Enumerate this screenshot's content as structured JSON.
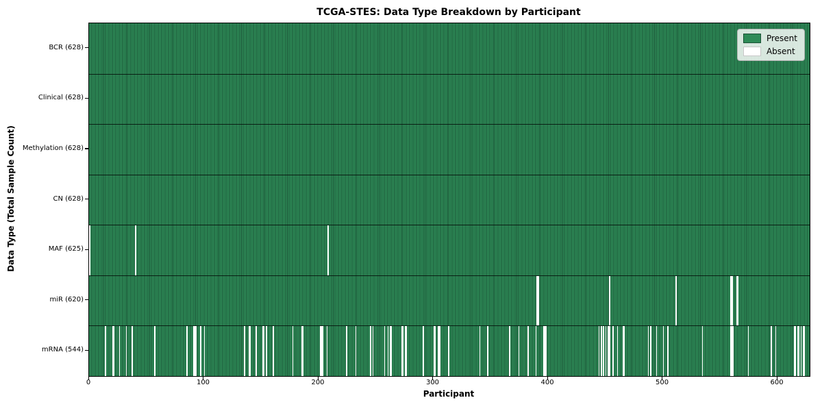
{
  "chart_data": {
    "type": "heatmap",
    "title": "TCGA-STES: Data Type Breakdown by Participant",
    "xlabel": "Participant",
    "ylabel": "Data Type (Total Sample Count)",
    "n_participants": 628,
    "xlim": [
      0,
      628
    ],
    "xticks": [
      0,
      100,
      200,
      300,
      400,
      500,
      600
    ],
    "grid": false,
    "colors": {
      "present": "#2e8b57",
      "present_edge": "#1b5236",
      "absent": "#ffffff",
      "figure_background": "#ffffff",
      "plot_border": "#000000"
    },
    "legend": {
      "position": "upper-right",
      "entries": [
        {
          "label": "Present",
          "color": "#2e8b57",
          "edge": "#1b5236"
        },
        {
          "label": "Absent",
          "color": "#ffffff",
          "edge": "#c8c8c8"
        }
      ]
    },
    "rows": [
      {
        "key": "bcr",
        "label": "BCR (628)",
        "data_type": "BCR",
        "present_count": 628,
        "absent_participants": []
      },
      {
        "key": "clinical",
        "label": "Clinical (628)",
        "data_type": "Clinical",
        "present_count": 628,
        "absent_participants": []
      },
      {
        "key": "methylation",
        "label": "Methylation (628)",
        "data_type": "Methylation",
        "present_count": 628,
        "absent_participants": []
      },
      {
        "key": "cn",
        "label": "CN (628)",
        "data_type": "CN",
        "present_count": 628,
        "absent_participants": []
      },
      {
        "key": "maf",
        "label": "MAF (625)",
        "data_type": "MAF",
        "present_count": 625,
        "absent_participants": [
          0,
          40,
          208
        ]
      },
      {
        "key": "mir",
        "label": "miR (620)",
        "data_type": "miR",
        "present_count": 620,
        "absent_participants": [
          390,
          391,
          453,
          511,
          559,
          560,
          564,
          565
        ]
      },
      {
        "key": "mrna",
        "label": "mRNA (544)",
        "data_type": "mRNA",
        "present_count": 544,
        "absent_participants": [
          14,
          20,
          21,
          26,
          32,
          37,
          57,
          85,
          91,
          92,
          93,
          97,
          100,
          135,
          139,
          140,
          145,
          151,
          152,
          154,
          160,
          177,
          185,
          186,
          201,
          202,
          203,
          207,
          224,
          232,
          245,
          247,
          257,
          260,
          262,
          263,
          272,
          273,
          275,
          276,
          291,
          300,
          301,
          304,
          305,
          313,
          340,
          347,
          366,
          374,
          382,
          389,
          396,
          397,
          398,
          444,
          446,
          448,
          450,
          452,
          453,
          456,
          460,
          465,
          466,
          487,
          489,
          494,
          500,
          504,
          534,
          559,
          560,
          561,
          574,
          594,
          598,
          614,
          615,
          617,
          618,
          620,
          622,
          623
        ]
      }
    ]
  }
}
